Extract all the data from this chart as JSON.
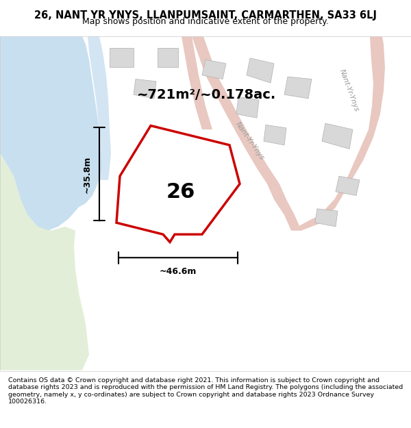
{
  "title": "26, NANT YR YNYS, LLANPUMSAINT, CARMARTHEN, SA33 6LJ",
  "subtitle": "Map shows position and indicative extent of the property.",
  "footer": "Contains OS data © Crown copyright and database right 2021. This information is subject to Crown copyright and database rights 2023 and is reproduced with the permission of HM Land Registry. The polygons (including the associated geometry, namely x, y co-ordinates) are subject to Crown copyright and database rights 2023 Ordnance Survey 100026316.",
  "area_text": "~721m²/~0.178ac.",
  "width_text": "~46.6m",
  "height_text": "~35.8m",
  "property_number": "26",
  "bg_color": "#f8f8f8",
  "map_bg": "#f2efe9",
  "water_color": "#c8dff0",
  "green_color": "#d8e8c8",
  "road_color": "#e8d8d0",
  "building_color": "#d8d8d8",
  "plot_color": "#cc0000",
  "road_label1": "Nant-Yr-Ynys",
  "road_label2": "Nant-Yr-Ynys",
  "xlim": [
    0,
    1
  ],
  "ylim": [
    0,
    1
  ]
}
